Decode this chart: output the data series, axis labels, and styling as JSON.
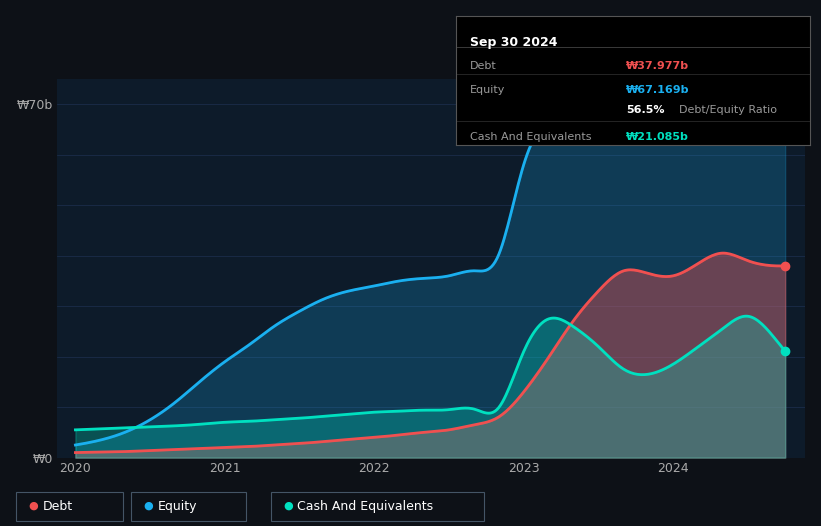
{
  "background_color": "#0d1117",
  "chart_bg": "#0d1b2a",
  "tooltip": {
    "date": "Sep 30 2024",
    "debt_label": "Debt",
    "debt_value": "₩37.977b",
    "equity_label": "Equity",
    "equity_value": "₩67.169b",
    "ratio_value": "56.5%",
    "ratio_label": "Debt/Equity Ratio",
    "cash_label": "Cash And Equivalents",
    "cash_value": "₩21.085b"
  },
  "ylabel_top": "₩70b",
  "ylabel_bot": "₩0",
  "x_ticks": [
    2020,
    2021,
    2022,
    2023,
    2024
  ],
  "debt_color": "#f05050",
  "equity_color": "#1ab0f0",
  "cash_color": "#00e0c0",
  "legend_items": [
    "Debt",
    "Equity",
    "Cash And Equivalents"
  ],
  "x_data": [
    2020.0,
    2020.17,
    2020.33,
    2020.5,
    2020.67,
    2020.83,
    2021.0,
    2021.17,
    2021.33,
    2021.5,
    2021.67,
    2021.83,
    2022.0,
    2022.17,
    2022.33,
    2022.5,
    2022.67,
    2022.83,
    2023.0,
    2023.17,
    2023.33,
    2023.5,
    2023.67,
    2023.83,
    2024.0,
    2024.17,
    2024.33,
    2024.5,
    2024.67,
    2024.75
  ],
  "equity": [
    2.5,
    3.5,
    5.0,
    7.5,
    11.0,
    15.0,
    19.0,
    22.5,
    26.0,
    29.0,
    31.5,
    33.0,
    34.0,
    35.0,
    35.5,
    36.0,
    37.0,
    40.0,
    58.0,
    67.0,
    68.5,
    67.5,
    65.5,
    63.5,
    64.5,
    65.5,
    66.5,
    67.5,
    68.0,
    67.169
  ],
  "debt": [
    1.0,
    1.1,
    1.2,
    1.4,
    1.6,
    1.8,
    2.0,
    2.2,
    2.5,
    2.8,
    3.2,
    3.6,
    4.0,
    4.5,
    5.0,
    5.5,
    6.5,
    8.0,
    13.0,
    20.0,
    27.0,
    33.0,
    37.0,
    36.5,
    36.0,
    38.5,
    40.5,
    39.0,
    38.0,
    37.977
  ],
  "cash": [
    5.5,
    5.7,
    5.9,
    6.1,
    6.3,
    6.6,
    7.0,
    7.2,
    7.5,
    7.8,
    8.2,
    8.6,
    9.0,
    9.2,
    9.4,
    9.5,
    9.6,
    9.8,
    21.0,
    27.5,
    26.0,
    22.0,
    17.5,
    16.5,
    18.5,
    22.0,
    25.5,
    28.0,
    24.0,
    21.085
  ],
  "ylim": [
    0,
    75
  ],
  "xlim": [
    2019.88,
    2024.88
  ]
}
